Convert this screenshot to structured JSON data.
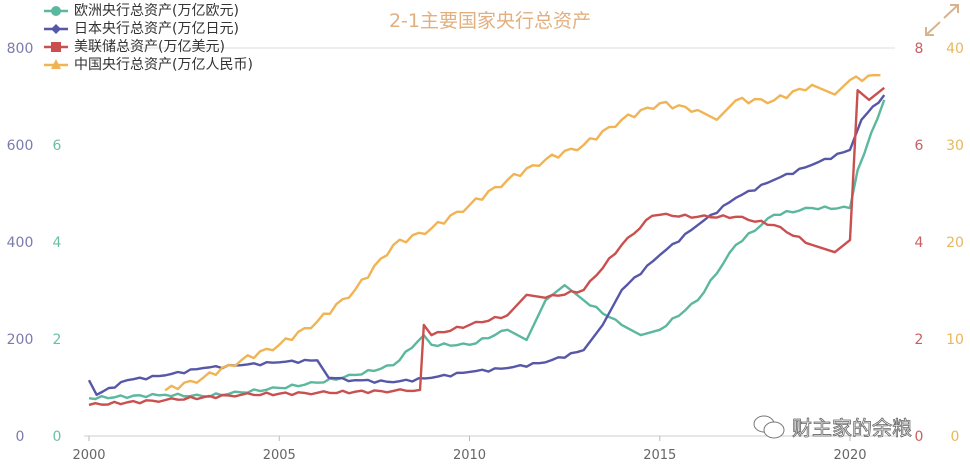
{
  "chart_data": {
    "type": "line",
    "title": "2-1主要国家央行总资产",
    "xlim": [
      2000,
      2021
    ],
    "x_ticks": [
      "2000",
      "2005",
      "2010",
      "2015",
      "2020"
    ],
    "grid": "horizontal-top-and-baseline",
    "legend_position": "top-left",
    "axes": {
      "left_outer": {
        "range": [
          0,
          800
        ],
        "ticks": [
          "0",
          "200",
          "400",
          "600",
          "800"
        ],
        "color": "#7b7bb0",
        "series": "日本央行总资产(万亿日元)"
      },
      "left_inner": {
        "range": [
          0,
          8
        ],
        "ticks": [
          "0",
          "2",
          "4",
          "6"
        ],
        "color": "#6bbfa8",
        "series": "欧洲央行总资产(万亿欧元)"
      },
      "right_inner": {
        "range": [
          0,
          8
        ],
        "ticks": [
          "0",
          "2",
          "4",
          "6",
          "8"
        ],
        "color": "#c9605f",
        "series": "美联储总资产(万亿美元)"
      },
      "right_outer": {
        "range": [
          0,
          40
        ],
        "ticks": [
          "0",
          "10",
          "20",
          "30",
          "40"
        ],
        "color": "#e8b85a",
        "series": "中国央行总资产(万亿人民币)"
      }
    },
    "series": [
      {
        "name": "欧洲央行总资产(万亿欧元)",
        "axis": "left_inner",
        "color": "#5bb89e",
        "marker": "circle",
        "x": [
          2000,
          2002,
          2003,
          2004,
          2005,
          2006,
          2007,
          2008,
          2008.8,
          2009,
          2010,
          2011,
          2011.5,
          2012,
          2012.5,
          2013,
          2014,
          2014.5,
          2015,
          2016,
          2017,
          2018,
          2019,
          2020,
          2020.2,
          2020.9
        ],
        "y": [
          0.78,
          0.85,
          0.82,
          0.9,
          0.99,
          1.1,
          1.26,
          1.46,
          2.08,
          1.88,
          1.88,
          2.19,
          1.98,
          2.8,
          3.11,
          2.8,
          2.29,
          2.08,
          2.19,
          2.8,
          3.94,
          4.56,
          4.7,
          4.7,
          5.48,
          6.93
        ]
      },
      {
        "name": "日本央行总资产(万亿日元)",
        "axis": "left_outer",
        "color": "#5757a8",
        "marker": "diamond",
        "x": [
          2000,
          2000.2,
          2001,
          2002,
          2003,
          2004,
          2005,
          2006,
          2006.3,
          2007,
          2008,
          2009,
          2010,
          2011,
          2012,
          2013,
          2013.5,
          2014,
          2015,
          2016,
          2017,
          2018,
          2019,
          2020,
          2020.3,
          2020.9
        ],
        "y": [
          115,
          85,
          115,
          125,
          140,
          146,
          152,
          156,
          120,
          115,
          111,
          120,
          132,
          140,
          152,
          177,
          229,
          301,
          373,
          435,
          491,
          528,
          559,
          590,
          652,
          703
        ]
      },
      {
        "name": "美联储总资产(万亿美元)",
        "axis": "right_inner",
        "color": "#c9504f",
        "marker": "square",
        "x": [
          2000,
          2002,
          2004,
          2006,
          2008,
          2008.7,
          2008.8,
          2009,
          2010,
          2011,
          2011.5,
          2012,
          2013,
          2014,
          2014.8,
          2015,
          2016,
          2017,
          2018,
          2019,
          2019.6,
          2020,
          2020.2,
          2020.5,
          2020.9
        ],
        "y": [
          0.64,
          0.74,
          0.85,
          0.89,
          0.93,
          0.95,
          2.29,
          2.08,
          2.29,
          2.49,
          2.91,
          2.85,
          3.01,
          3.94,
          4.54,
          4.56,
          4.52,
          4.52,
          4.35,
          3.94,
          3.79,
          4.04,
          7.13,
          6.93,
          7.18
        ]
      },
      {
        "name": "中国央行总资产(万亿人民币)",
        "axis": "right_outer",
        "color": "#f0b455",
        "marker": "triangle",
        "x": [
          2002,
          2003,
          2004,
          2005,
          2006,
          2007,
          2008,
          2009,
          2010,
          2011,
          2012,
          2013,
          2014,
          2015,
          2016,
          2016.5,
          2017,
          2018,
          2019,
          2019.6,
          2020,
          2020.8
        ],
        "y": [
          4.7,
          6.0,
          7.8,
          9.4,
          11.8,
          15.1,
          19.7,
          21.4,
          23.8,
          26.4,
          28.5,
          30,
          32.6,
          34.3,
          33.6,
          32.6,
          34.6,
          34.6,
          36.2,
          35.2,
          36.7,
          37.2
        ]
      }
    ]
  },
  "watermark": "财主家的余粮",
  "icons": {
    "expand": "expand-arrows-icon",
    "watermark": "wechat-icon"
  }
}
